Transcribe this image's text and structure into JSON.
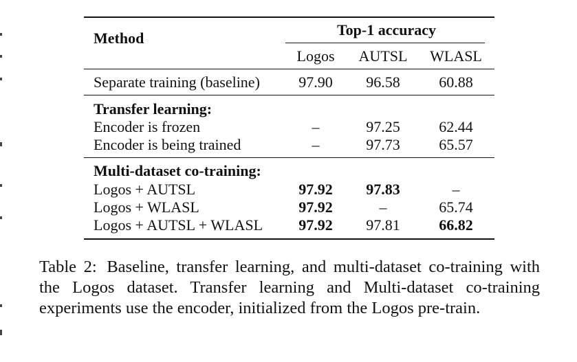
{
  "table": {
    "header": {
      "method": "Method",
      "group": "Top-1 accuracy",
      "columns": [
        "Logos",
        "AUTSL",
        "WLASL"
      ]
    },
    "baseline": {
      "label": "Separate training (baseline)",
      "values": [
        "97.90",
        "96.58",
        "60.88"
      ]
    },
    "transfer": {
      "title": "Transfer learning:",
      "rows": [
        {
          "label": "Encoder is frozen",
          "values": [
            "–",
            "97.25",
            "62.44"
          ]
        },
        {
          "label": "Encoder is being trained",
          "values": [
            "–",
            "97.73",
            "65.57"
          ]
        }
      ]
    },
    "cotrain": {
      "title": "Multi-dataset co-training:",
      "rows": [
        {
          "label": "Logos + AUTSL",
          "values": [
            "97.92",
            "97.83",
            "–"
          ]
        },
        {
          "label": "Logos + WLASL",
          "values": [
            "97.92",
            "–",
            "65.74"
          ]
        },
        {
          "label": "Logos + AUTSL + WLASL",
          "values": [
            "97.92",
            "97.81",
            "66.82"
          ]
        }
      ]
    }
  },
  "caption": {
    "label": "Table 2:",
    "text": "Baseline, transfer learning, and multi-dataset co-training with the Logos dataset. Transfer learning and Multi-dataset co-training experiments use the encoder, initialized from the Logos pre-train."
  }
}
